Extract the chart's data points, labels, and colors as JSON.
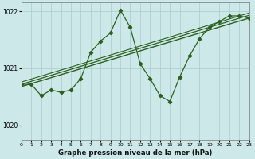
{
  "title": "Graphe pression niveau de la mer (hPa)",
  "bg_color": "#cce8e8",
  "grid_color": "#aacccc",
  "line_color": "#2d6020",
  "xlim": [
    0,
    23
  ],
  "ylim": [
    1019.75,
    1022.15
  ],
  "yticks": [
    1020,
    1021,
    1022
  ],
  "xticks": [
    0,
    1,
    2,
    3,
    4,
    5,
    6,
    7,
    8,
    9,
    10,
    11,
    12,
    13,
    14,
    15,
    16,
    17,
    18,
    19,
    20,
    21,
    22,
    23
  ],
  "main_series": {
    "x": [
      0,
      1,
      2,
      3,
      4,
      5,
      6,
      7,
      8,
      9,
      10,
      11,
      12,
      13,
      14,
      15,
      16,
      17,
      18,
      19,
      20,
      21,
      22,
      23
    ],
    "y": [
      1020.72,
      1020.72,
      1020.52,
      1020.62,
      1020.58,
      1020.62,
      1020.82,
      1021.28,
      1021.48,
      1021.62,
      1022.02,
      1021.72,
      1021.08,
      1020.82,
      1020.52,
      1020.42,
      1020.85,
      1021.22,
      1021.52,
      1021.72,
      1021.82,
      1021.92,
      1021.92,
      1021.88
    ]
  },
  "trend_lines": [
    {
      "x0": 0,
      "y0": 1020.68,
      "x1": 23,
      "y1": 1021.88,
      "lw": 1.0
    },
    {
      "x0": 0,
      "y0": 1020.72,
      "x1": 23,
      "y1": 1021.93,
      "lw": 0.9
    },
    {
      "x0": 0,
      "y0": 1020.76,
      "x1": 23,
      "y1": 1021.97,
      "lw": 0.8
    }
  ]
}
